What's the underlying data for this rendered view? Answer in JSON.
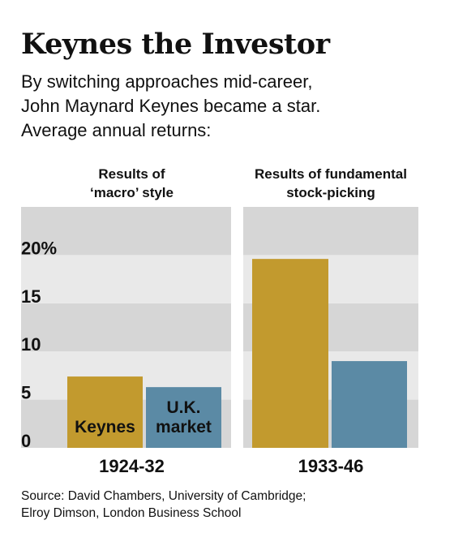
{
  "title": "Keynes the Investor",
  "subtitle": [
    "By switching approaches mid-career,",
    "John Maynard Keynes became a star.",
    "Average annual returns:"
  ],
  "source": [
    "Source: David Chambers, University of Cambridge;",
    "Elroy Dimson, London Business School"
  ],
  "chart_data": {
    "type": "bar",
    "ylim": [
      0,
      25
    ],
    "y_ticks": [
      {
        "value": 0,
        "label": "0"
      },
      {
        "value": 5,
        "label": "5"
      },
      {
        "value": 10,
        "label": "10"
      },
      {
        "value": 15,
        "label": "15"
      },
      {
        "value": 20,
        "label": "20%"
      }
    ],
    "colors": {
      "Keynes": "#c29a2e",
      "U.K. market": "#5b8aa5",
      "band_dark": "#d6d6d6",
      "band_light": "#e9e9e9"
    },
    "panels": [
      {
        "title": [
          "Results of",
          "‘macro’ style"
        ],
        "period": "1924-32",
        "bars": [
          {
            "series": "Keynes",
            "value": 7.4,
            "label": [
              "Keynes"
            ]
          },
          {
            "series": "U.K. market",
            "value": 6.3,
            "label": [
              "U.K.",
              "market"
            ]
          }
        ]
      },
      {
        "title": [
          "Results of fundamental",
          "stock-picking"
        ],
        "period": "1933-46",
        "bars": [
          {
            "series": "Keynes",
            "value": 19.6,
            "label": []
          },
          {
            "series": "U.K. market",
            "value": 9.0,
            "label": []
          }
        ]
      }
    ]
  }
}
